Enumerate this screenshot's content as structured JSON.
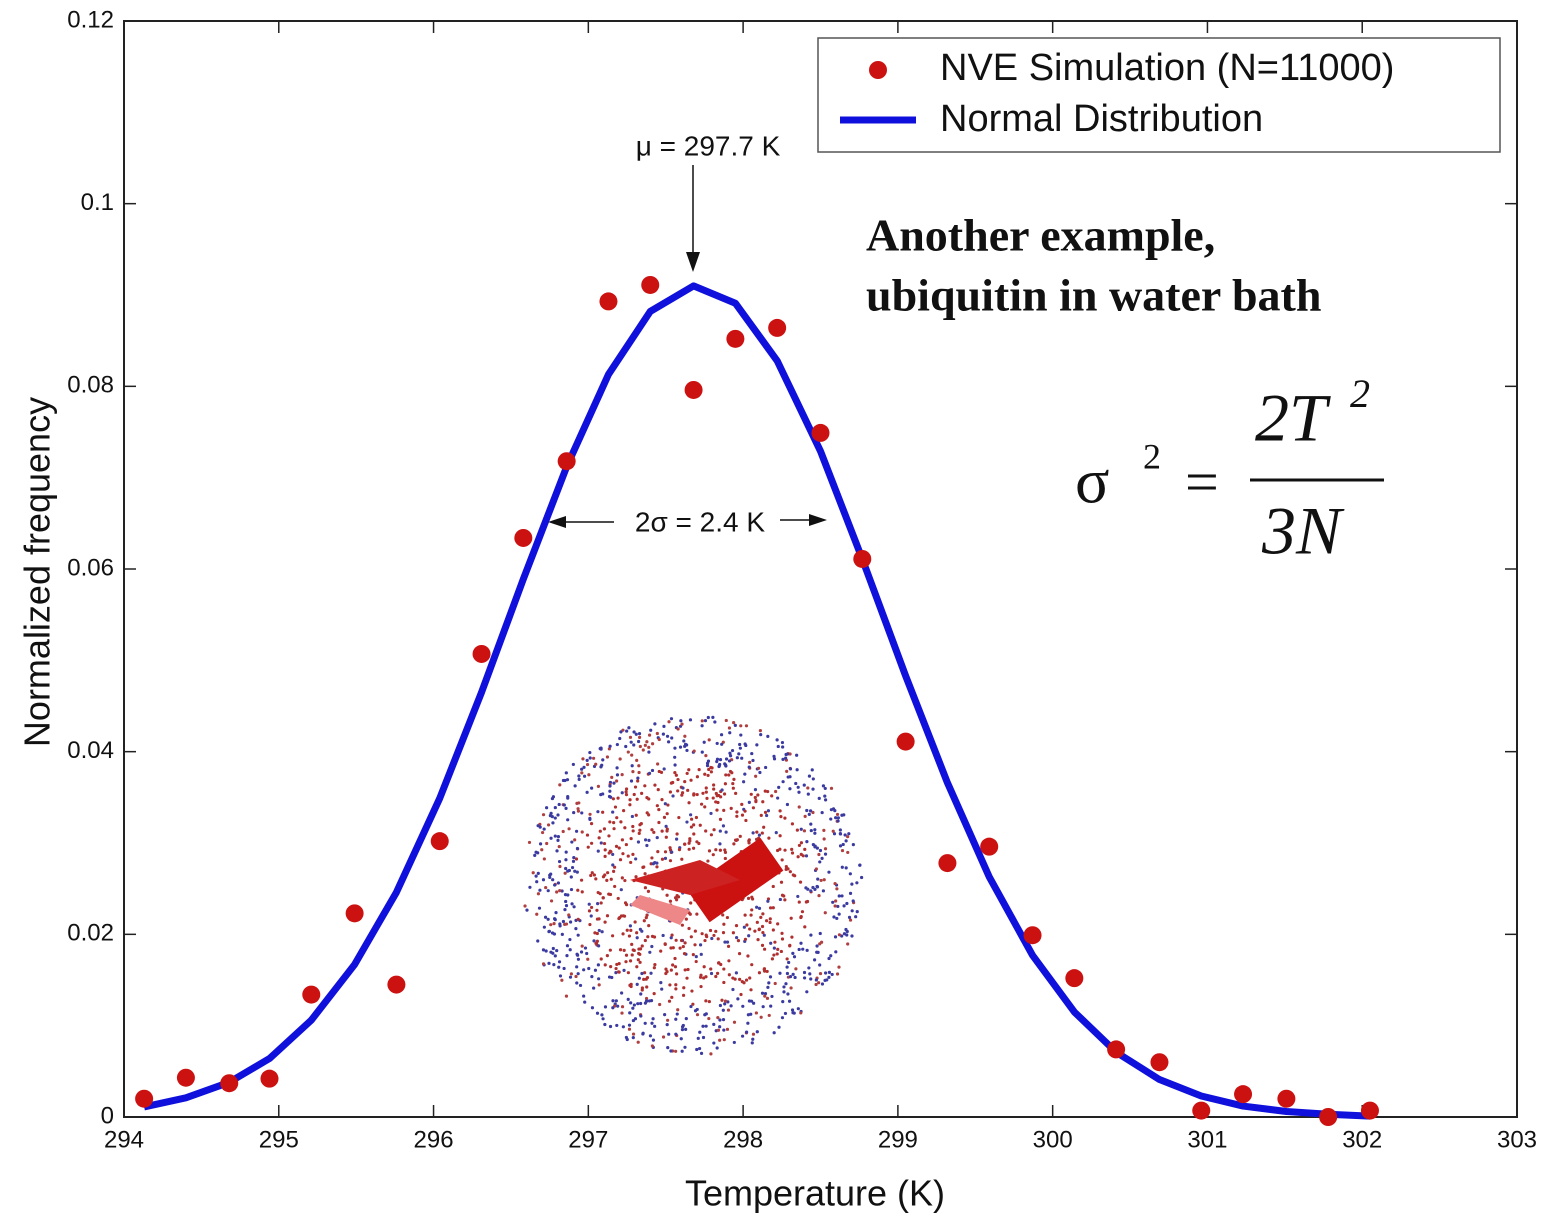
{
  "chart_data": {
    "type": "scatter-line",
    "xlabel": "Temperature (K)",
    "ylabel": "Normalized frequency",
    "xlim": [
      294,
      303
    ],
    "xticks": [
      294,
      295,
      296,
      297,
      298,
      299,
      300,
      301,
      302,
      303
    ],
    "ylim": [
      0,
      0.12
    ],
    "yticks": [
      0,
      0.02,
      0.04,
      0.06,
      0.08,
      0.1,
      0.12
    ],
    "x": [
      294.13,
      294.4,
      294.68,
      294.94,
      295.21,
      295.49,
      295.76,
      296.04,
      296.31,
      296.58,
      296.86,
      297.13,
      297.4,
      297.68,
      297.95,
      298.22,
      298.5,
      298.77,
      299.05,
      299.32,
      299.59,
      299.87,
      300.14,
      300.41,
      300.69,
      300.96,
      301.23,
      301.51,
      301.78,
      302.05
    ],
    "series": [
      {
        "name": "NVE Simulation (N=11000)",
        "color": "#cc1111",
        "style": "markers",
        "values": [
          0.002,
          0.0043,
          0.0037,
          0.0042,
          0.0134,
          0.0223,
          0.0145,
          0.0302,
          0.0507,
          0.0634,
          0.0718,
          0.0893,
          0.0911,
          0.0796,
          0.0852,
          0.0864,
          0.0749,
          0.0611,
          0.0411,
          0.0278,
          0.0296,
          0.0199,
          0.0152,
          0.0074,
          0.006,
          0.0007,
          0.0025,
          0.002,
          0.0,
          0.0007
        ]
      },
      {
        "name": "Normal Distribution",
        "color": "#1010dd",
        "style": "line",
        "values": [
          0.0011,
          0.0021,
          0.0038,
          0.0064,
          0.0106,
          0.0167,
          0.0246,
          0.0349,
          0.0465,
          0.0589,
          0.0712,
          0.0813,
          0.0882,
          0.091,
          0.0891,
          0.0828,
          0.0729,
          0.0611,
          0.0483,
          0.0366,
          0.0263,
          0.0177,
          0.0115,
          0.0071,
          0.0041,
          0.0023,
          0.0012,
          0.0006,
          0.0003,
          0.0001
        ]
      }
    ],
    "legend": "upper right",
    "annotations": {
      "mean": "μ = 297.7 K",
      "width": "2σ = 2.4 K",
      "note": [
        "Another example,",
        "ubiquitin in water bath"
      ],
      "formula": {
        "lhs": "σ",
        "lhs_exp": "2",
        "eq": "=",
        "num": "2T",
        "num_exp": "2",
        "den": "3N"
      }
    }
  }
}
